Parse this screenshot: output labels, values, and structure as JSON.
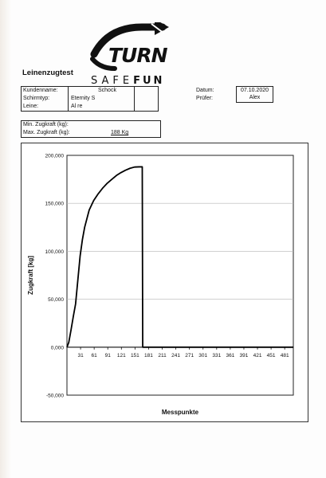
{
  "header": {
    "logo_text": "TURN",
    "brand_thin": "SAFE",
    "brand_bold": "FUN",
    "title": "Leinenzugtest"
  },
  "info": {
    "kundenname_label": "Kundenname:",
    "kundenname_value": "Schock",
    "schirmtyp_label": "Schirmtyp:",
    "schirmtyp_value": "Eternity S",
    "leine_label": "Leine:",
    "leine_value": "Al re",
    "datum_label": "Datum:",
    "datum_value": "07.10.2020",
    "pruefer_label": "Prüfer:",
    "pruefer_value": "Alex"
  },
  "force": {
    "min_label": "Min. Zugkraft (kg):",
    "max_label": "Max. Zugkraft (kg):",
    "max_value": "188 Kg"
  },
  "chart_data": {
    "type": "line",
    "xlabel": "Messpunkte",
    "ylabel": "Zugkraft [kg]",
    "ylim": [
      -50000,
      200000
    ],
    "xlim": [
      1,
      500
    ],
    "y_ticks": [
      200000,
      150000,
      100000,
      50000,
      0,
      -50000
    ],
    "y_tick_labels": [
      "200,000",
      "150,000",
      "100,000",
      "50,000",
      "0,000",
      "-50,000"
    ],
    "x_ticks": [
      31,
      61,
      91,
      121,
      151,
      181,
      211,
      241,
      271,
      301,
      331,
      361,
      391,
      421,
      451,
      481
    ],
    "x_tick_labels": [
      "31",
      "61",
      "91",
      "121",
      "151",
      "181",
      "211",
      "241",
      "271",
      "301",
      "331",
      "361",
      "391",
      "421",
      "451",
      "481"
    ],
    "grid": true,
    "series": [
      {
        "color": "#000000",
        "x": [
          1,
          5,
          10,
          15,
          20,
          25,
          30,
          35,
          40,
          50,
          60,
          70,
          80,
          90,
          100,
          110,
          120,
          130,
          140,
          150,
          160,
          165,
          167,
          168,
          180,
          240,
          300,
          360,
          420,
          480,
          500
        ],
        "y": [
          0,
          5000,
          18000,
          32000,
          45000,
          70000,
          95000,
          112000,
          125000,
          143000,
          153000,
          160000,
          166000,
          171000,
          175000,
          179000,
          182000,
          184500,
          186500,
          187800,
          188000,
          188000,
          188000,
          0,
          0,
          0,
          0,
          0,
          0,
          0,
          0
        ]
      }
    ]
  }
}
